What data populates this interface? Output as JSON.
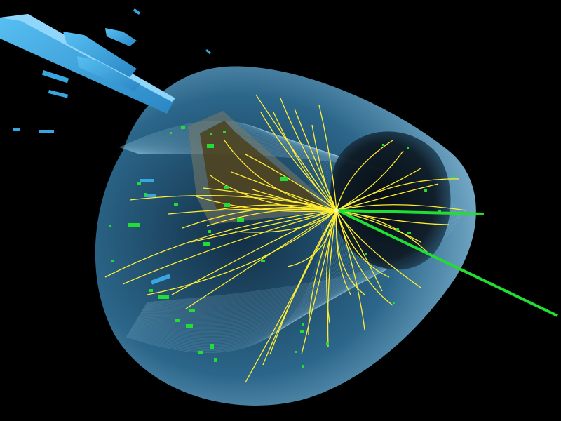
{
  "scene": {
    "subject": "particle-collision-event-display",
    "colors": {
      "background": "#000000",
      "detector_fill": "#7fb8d8",
      "detector_mesh": "#a9dcf2",
      "inner_hole": "#0e1a24",
      "tracks": "#ffee33",
      "deposits": "#22dd33",
      "calorimeter_towers": "#3aa6e0",
      "jet_cone": "#7a7a66"
    }
  }
}
